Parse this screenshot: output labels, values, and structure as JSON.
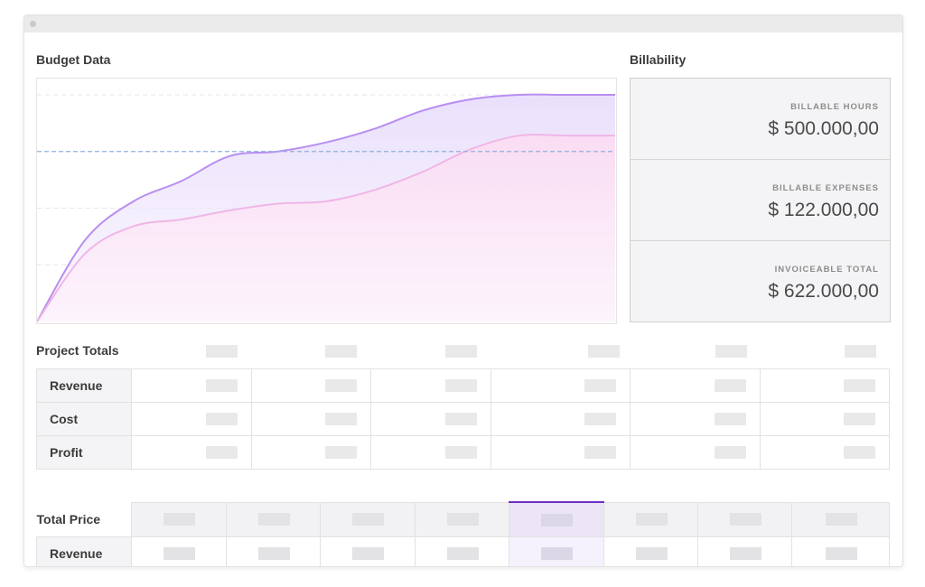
{
  "budget": {
    "title": "Budget Data",
    "chart_data": {
      "type": "area",
      "title": "",
      "xlabel": "",
      "ylabel": "",
      "x": [
        0,
        1,
        2,
        3,
        4,
        5,
        6,
        7,
        8,
        9,
        10,
        11,
        12
      ],
      "ylim": [
        0,
        100
      ],
      "series": [
        {
          "values": [
            0,
            36,
            53,
            62,
            73,
            75,
            79,
            85,
            93,
            98,
            100,
            100,
            100
          ],
          "color": "#b98ef0"
        },
        {
          "values": [
            0,
            30,
            42,
            45,
            49,
            52,
            53,
            58,
            66,
            76,
            82,
            82,
            82
          ],
          "color": "#f0b6e6"
        }
      ],
      "reference_line": {
        "value": 75,
        "color": "#8fb0df",
        "style": "dashed"
      },
      "grid": true
    }
  },
  "billability": {
    "title": "Billability",
    "rows": [
      {
        "label": "BILLABLE HOURS",
        "value": "$ 500.000,00"
      },
      {
        "label": "BILLABLE EXPENSES",
        "value": "$ 122.000,00"
      },
      {
        "label": "INVOICEABLE TOTAL",
        "value": "$ 622.000,00"
      }
    ]
  },
  "project_totals": {
    "title": "Project Totals",
    "rows": [
      {
        "label": "Revenue"
      },
      {
        "label": "Cost"
      },
      {
        "label": "Profit"
      }
    ]
  },
  "total_price": {
    "title": "Total Price",
    "rows": [
      {
        "label": "Revenue"
      }
    ]
  },
  "colors": {
    "accent": "#6d30c4",
    "series_purple": "#b98ef0",
    "series_pink": "#f0b6e6",
    "reference": "#8fb0df"
  }
}
